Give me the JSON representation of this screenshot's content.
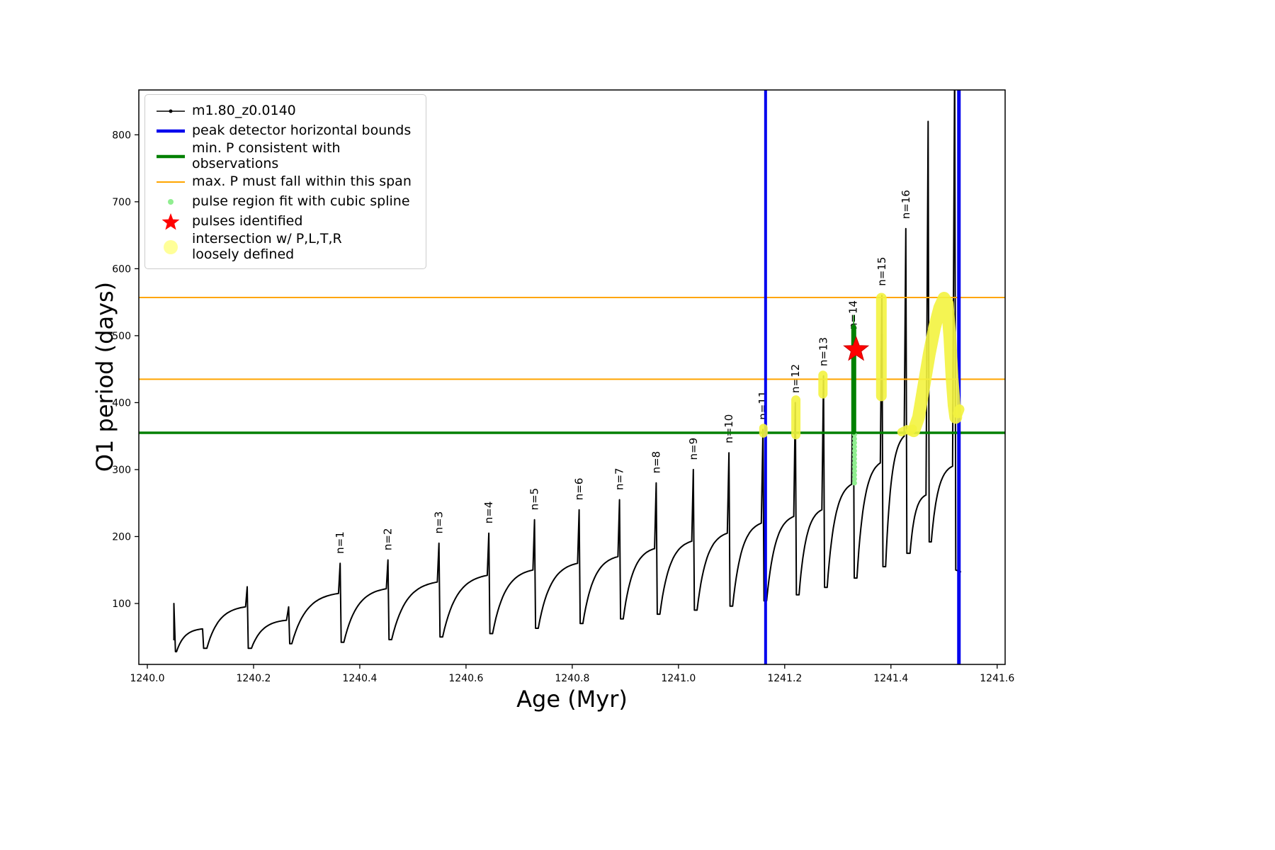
{
  "figure": {
    "background": "#ffffff"
  },
  "chart_data": {
    "type": "line",
    "title": "",
    "xlabel": "Age (Myr)",
    "ylabel": "O1 period (days)",
    "xlim": [
      1239.984,
      1241.615
    ],
    "ylim": [
      9,
      867
    ],
    "xticks": [
      1240.0,
      1240.2,
      1240.4,
      1240.6,
      1240.8,
      1241.0,
      1241.2,
      1241.4,
      1241.6
    ],
    "xtick_labels": [
      "1240.0",
      "1240.2",
      "1240.4",
      "1240.6",
      "1240.8",
      "1241.0",
      "1241.2",
      "1241.4",
      "1241.6"
    ],
    "yticks": [
      100,
      200,
      300,
      400,
      500,
      600,
      700,
      800
    ],
    "grid": false,
    "legend_position": "upper left",
    "legend": [
      {
        "label": "m1.80_z0.0140",
        "marker": "line-dot",
        "color": "#000000"
      },
      {
        "label": "peak detector horizontal bounds",
        "marker": "thick-line",
        "color": "#0000ee"
      },
      {
        "label": "min. P consistent with observations",
        "marker": "thick-line",
        "color": "#008000"
      },
      {
        "label": "max. P must fall within this span",
        "marker": "line",
        "color": "#ffa500"
      },
      {
        "label": "pulse region fit with cubic spline",
        "marker": "small-dot",
        "color": "#90ee90"
      },
      {
        "label": "pulses identified",
        "marker": "star",
        "color": "#ff0000"
      },
      {
        "label": "intersection w/ P,L,T,R\nloosely defined",
        "marker": "big-dot",
        "color": "rgba(255,255,0,0.4)"
      }
    ],
    "main_series": {
      "name": "m1.80_z0.0140",
      "color": "#000000",
      "intro": [
        [
          1240.05,
          45
        ],
        [
          1240.05,
          100
        ],
        [
          1240.053,
          28
        ]
      ],
      "cycles": [
        [
          1240.055,
          28,
          1240.103,
          62,
          1240.104,
          62
        ],
        [
          1240.112,
          33,
          1240.185,
          95,
          1240.188,
          125
        ],
        [
          1240.196,
          33,
          1240.262,
          75,
          1240.266,
          95
        ],
        [
          1240.272,
          40,
          1240.36,
          115,
          1240.363,
          160
        ],
        [
          1240.37,
          42,
          1240.45,
          122,
          1240.453,
          165
        ],
        [
          1240.46,
          46,
          1240.546,
          132,
          1240.549,
          190
        ],
        [
          1240.556,
          50,
          1240.64,
          142,
          1240.643,
          205
        ],
        [
          1240.65,
          55,
          1240.726,
          150,
          1240.729,
          225
        ],
        [
          1240.736,
          63,
          1240.81,
          160,
          1240.813,
          240
        ],
        [
          1240.82,
          70,
          1240.886,
          170,
          1240.889,
          255
        ],
        [
          1240.896,
          77,
          1240.955,
          182,
          1240.958,
          280
        ],
        [
          1240.965,
          84,
          1241.025,
          193,
          1241.028,
          300
        ],
        [
          1241.035,
          90,
          1241.092,
          205,
          1241.095,
          325
        ],
        [
          1241.102,
          96,
          1241.156,
          220,
          1241.159,
          360
        ],
        [
          1241.166,
          104,
          1241.217,
          230,
          1241.22,
          400
        ],
        [
          1241.227,
          113,
          1241.27,
          240,
          1241.273,
          440
        ],
        [
          1241.28,
          124,
          1241.326,
          278,
          1241.329,
          490
        ],
        [
          1241.336,
          138,
          1241.38,
          310,
          1241.383,
          560
        ],
        [
          1241.39,
          155,
          1241.425,
          350,
          1241.428,
          660
        ],
        [
          1241.436,
          175,
          1241.466,
          262,
          1241.47,
          820
        ],
        [
          1241.476,
          192,
          1241.516,
          305,
          1241.52,
          920
        ]
      ],
      "tail": [
        [
          1241.522,
          150
        ],
        [
          1241.532,
          147
        ]
      ]
    },
    "pulse_labels": [
      [
        "n=1",
        1240.363,
        170
      ],
      [
        "n=2",
        1240.453,
        175
      ],
      [
        "n=3",
        1240.549,
        200
      ],
      [
        "n=4",
        1240.643,
        215
      ],
      [
        "n=5",
        1240.729,
        235
      ],
      [
        "n=6",
        1240.813,
        250
      ],
      [
        "n=7",
        1240.889,
        265
      ],
      [
        "n=8",
        1240.958,
        290
      ],
      [
        "n=9",
        1241.028,
        310
      ],
      [
        "n=10",
        1241.095,
        335
      ],
      [
        "n=11",
        1241.159,
        370
      ],
      [
        "n=12",
        1241.22,
        410
      ],
      [
        "n=13",
        1241.273,
        450
      ],
      [
        "n=14",
        1241.329,
        505
      ],
      [
        "n=15",
        1241.383,
        570
      ],
      [
        "n=16",
        1241.428,
        670
      ]
    ],
    "hlines": [
      {
        "name": "min-period-line",
        "y": 355,
        "color": "#008000",
        "width": 3.5
      },
      {
        "name": "max-period-span-upper",
        "y": 557,
        "color": "#ffa500",
        "width": 2
      },
      {
        "name": "max-period-span-lower",
        "y": 435,
        "color": "#ffa500",
        "width": 2
      }
    ],
    "vlines": [
      {
        "name": "peak-detector-left-bound",
        "x": 1241.164,
        "color": "#0000ee",
        "width": 4
      },
      {
        "name": "peak-detector-right-bound",
        "x": 1241.528,
        "color": "#0000ee",
        "width": 5
      }
    ],
    "yellow_intersections": {
      "color": "#f3f33f",
      "segments": [
        {
          "w": 12,
          "pts": [
            [
              1241.16,
              354
            ],
            [
              1241.16,
              362
            ]
          ]
        },
        {
          "w": 13,
          "pts": [
            [
              1241.221,
              352
            ],
            [
              1241.221,
              404
            ]
          ]
        },
        {
          "w": 13,
          "pts": [
            [
              1241.272,
              413
            ],
            [
              1241.272,
              441
            ]
          ]
        },
        {
          "w": 15,
          "pts": [
            [
              1241.382,
              410
            ],
            [
              1241.382,
              556
            ]
          ]
        },
        {
          "w": 12,
          "pts": [
            [
              1241.42,
              356
            ],
            [
              1241.43,
              360
            ]
          ]
        },
        {
          "w": 12,
          "pts": [
            [
              1241.436,
              357
            ],
            [
              1241.441,
              361
            ]
          ]
        },
        {
          "w": 18,
          "pts": [
            [
              1241.443,
              358
            ],
            [
              1241.452,
              378
            ],
            [
              1241.462,
              425
            ],
            [
              1241.472,
              472
            ],
            [
              1241.482,
              512
            ],
            [
              1241.492,
              542
            ],
            [
              1241.5,
              556
            ],
            [
              1241.506,
              548
            ],
            [
              1241.511,
              498
            ],
            [
              1241.515,
              438
            ],
            [
              1241.519,
              396
            ],
            [
              1241.522,
              378
            ]
          ]
        },
        {
          "w": 14,
          "pts": [
            [
              1241.526,
              384
            ],
            [
              1241.529,
              390
            ]
          ]
        }
      ]
    },
    "spline_fit_dots": {
      "color": "#90ee90",
      "x": 1241.3315,
      "y_min": 280,
      "y_max": 352,
      "count": 13
    },
    "pulse_region": {
      "color": "#008000",
      "x": 1241.33,
      "y1": 356,
      "y2": 513,
      "thin_top": 531,
      "width": 7
    },
    "star": {
      "color": "#ff0000",
      "edge": "#cc0000",
      "x": 1241.3345,
      "y": 479
    }
  }
}
